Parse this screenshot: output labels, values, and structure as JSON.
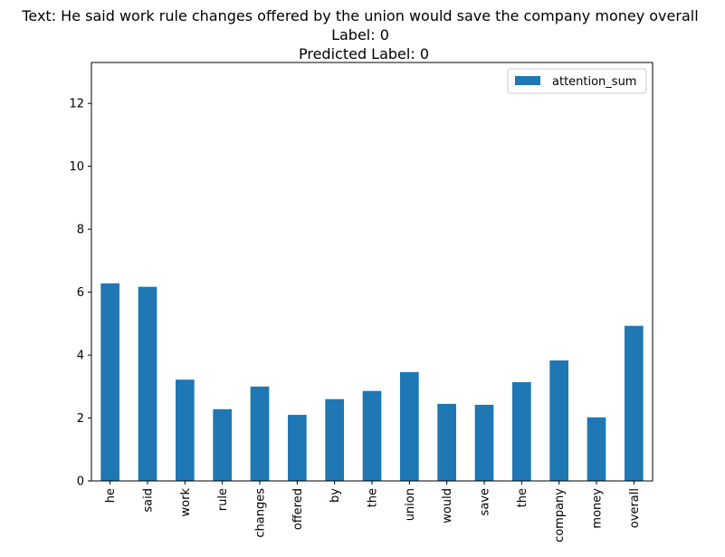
{
  "chart_data": {
    "type": "bar",
    "title_lines": [
      "Text: He said work rule changes offered by the union would save the company money overall",
      "Label: 0",
      "Predicted Label: 0"
    ],
    "xlabel": "",
    "ylabel": "",
    "categories": [
      "he",
      "said",
      "work",
      "rule",
      "changes",
      "offered",
      "by",
      "the",
      "union",
      "would",
      "save",
      "the",
      "company",
      "money",
      "overall"
    ],
    "series": [
      {
        "name": "attention_sum",
        "color": "#1f77b4",
        "values": [
          6.28,
          6.17,
          3.22,
          2.28,
          3.0,
          2.1,
          2.6,
          2.86,
          3.46,
          2.45,
          2.42,
          3.14,
          3.83,
          2.02,
          4.93
        ]
      }
    ],
    "ylim": [
      0,
      13.3
    ],
    "yticks": [
      0,
      2,
      4,
      6,
      8,
      10,
      12
    ],
    "grid": false,
    "legend_position": "top-right"
  }
}
